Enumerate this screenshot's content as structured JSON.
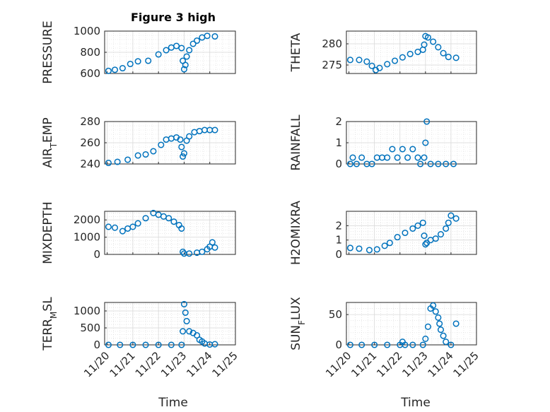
{
  "title": "Figure 3 high",
  "style": {
    "marker_color": "#0072BD",
    "axis_color": "#262626",
    "grid_color": "#d9d9d9"
  },
  "chart_data": [
    {
      "type": "scatter",
      "name": "pressure",
      "title": "Figure 3 high",
      "ylabel": "PRESSURE",
      "ylim": [
        600,
        1000
      ],
      "yticks": [
        600,
        800,
        1000
      ],
      "x": [
        0.05,
        0.3,
        0.6,
        0.9,
        1.2,
        1.6,
        2.0,
        2.3,
        2.5,
        2.7,
        2.9,
        2.95,
        3.0,
        3.05,
        3.1,
        3.2,
        3.35,
        3.5,
        3.7,
        3.9,
        4.2
      ],
      "y": [
        625,
        635,
        650,
        690,
        715,
        720,
        780,
        820,
        845,
        860,
        840,
        720,
        640,
        680,
        760,
        820,
        880,
        910,
        940,
        955,
        950
      ]
    },
    {
      "type": "scatter",
      "name": "theta",
      "ylabel": "THETA",
      "ylim": [
        273,
        283
      ],
      "yticks": [
        275,
        280
      ],
      "x": [
        0.05,
        0.4,
        0.7,
        0.9,
        1.05,
        1.2,
        1.5,
        1.8,
        2.1,
        2.4,
        2.7,
        2.9,
        2.95,
        3.0,
        3.1,
        3.3,
        3.5,
        3.7,
        3.9,
        4.2
      ],
      "y": [
        276.2,
        276.2,
        275.8,
        274.8,
        273.8,
        274.3,
        275.2,
        276.0,
        276.8,
        277.6,
        278.1,
        278.6,
        279.8,
        281.8,
        281.5,
        280.5,
        279.2,
        277.8,
        276.9,
        276.7
      ]
    },
    {
      "type": "scatter",
      "name": "air_temp",
      "ylabel": "AIR_TEMP",
      "ylim": [
        240,
        280
      ],
      "yticks": [
        240,
        260,
        280
      ],
      "x": [
        0.05,
        0.4,
        0.8,
        1.2,
        1.5,
        1.8,
        2.1,
        2.3,
        2.5,
        2.7,
        2.85,
        2.9,
        2.95,
        3.0,
        3.1,
        3.2,
        3.4,
        3.6,
        3.8,
        4.0,
        4.2
      ],
      "y": [
        241,
        242,
        244,
        248,
        249,
        252,
        258,
        263,
        264,
        265,
        263,
        256,
        247,
        250,
        262,
        266,
        270,
        271,
        272,
        272,
        272
      ]
    },
    {
      "type": "scatter",
      "name": "rainfall",
      "ylabel": "RAINFALL",
      "ylim": [
        0,
        2
      ],
      "yticks": [
        0,
        1,
        2
      ],
      "x": [
        0.05,
        0.15,
        0.3,
        0.5,
        0.7,
        0.9,
        1.1,
        1.3,
        1.5,
        1.7,
        1.9,
        2.1,
        2.3,
        2.5,
        2.7,
        2.8,
        2.95,
        3.0,
        3.05,
        3.2,
        3.5,
        3.8,
        4.1
      ],
      "y": [
        0,
        0.3,
        0,
        0.3,
        0,
        0,
        0.3,
        0.3,
        0.3,
        0.7,
        0.3,
        0.7,
        0.3,
        0.7,
        0.3,
        0,
        0.3,
        1.0,
        2.0,
        0,
        0,
        0,
        0
      ]
    },
    {
      "type": "scatter",
      "name": "mixdepth",
      "ylabel": "MIXDEPTH",
      "ylim": [
        0,
        2500
      ],
      "yticks": [
        0,
        1000,
        2000
      ],
      "x": [
        0.05,
        0.3,
        0.6,
        0.8,
        1.0,
        1.2,
        1.5,
        1.8,
        2.0,
        2.2,
        2.4,
        2.6,
        2.8,
        2.9,
        2.95,
        3.0,
        3.2,
        3.5,
        3.7,
        3.9,
        4.0,
        4.1,
        4.2
      ],
      "y": [
        1600,
        1550,
        1350,
        1500,
        1600,
        1800,
        2100,
        2400,
        2300,
        2200,
        2100,
        1900,
        1700,
        1500,
        150,
        50,
        50,
        100,
        150,
        300,
        450,
        700,
        400
      ]
    },
    {
      "type": "scatter",
      "name": "h2omixra",
      "ylabel": "H2OMIXRA",
      "ylim": [
        0,
        3
      ],
      "yticks": [
        0,
        1,
        2
      ],
      "x": [
        0.05,
        0.4,
        0.8,
        1.1,
        1.4,
        1.6,
        1.9,
        2.2,
        2.5,
        2.7,
        2.9,
        2.95,
        3.0,
        3.05,
        3.2,
        3.4,
        3.6,
        3.8,
        3.9,
        4.0,
        4.2
      ],
      "y": [
        0.45,
        0.4,
        0.3,
        0.35,
        0.6,
        0.8,
        1.2,
        1.5,
        1.8,
        2.0,
        2.2,
        1.3,
        0.7,
        0.8,
        1.0,
        1.1,
        1.4,
        1.8,
        2.2,
        2.7,
        2.5
      ]
    },
    {
      "type": "scatter",
      "name": "terr_msl",
      "ylabel": "TERR_MSL",
      "ylim": [
        0,
        1250
      ],
      "yticks": [
        0,
        500,
        1000
      ],
      "x": [
        0.05,
        0.5,
        1.0,
        1.5,
        2.0,
        2.5,
        2.9,
        2.95,
        3.0,
        3.05,
        3.1,
        3.2,
        3.35,
        3.5,
        3.6,
        3.7,
        3.8,
        4.0,
        4.2
      ],
      "y": [
        0,
        0,
        0,
        0,
        0,
        0,
        0,
        400,
        1200,
        950,
        700,
        400,
        350,
        280,
        150,
        100,
        40,
        10,
        20
      ]
    },
    {
      "type": "scatter",
      "name": "sun_flux",
      "ylabel": "SUN_FLUX",
      "ylim": [
        0,
        70
      ],
      "yticks": [
        0,
        50
      ],
      "x": [
        0.05,
        0.5,
        1.0,
        1.5,
        2.0,
        2.1,
        2.2,
        2.5,
        2.9,
        3.0,
        3.1,
        3.2,
        3.3,
        3.4,
        3.5,
        3.55,
        3.6,
        3.7,
        3.8,
        4.0,
        4.2
      ],
      "y": [
        0,
        0,
        0,
        0,
        0,
        5,
        0,
        0,
        0,
        10,
        30,
        60,
        65,
        55,
        45,
        35,
        25,
        15,
        5,
        0,
        35
      ]
    }
  ],
  "xaxis": {
    "ticks": [
      0,
      1,
      2,
      3,
      4,
      5
    ],
    "tick_labels": [
      "11/20",
      "11/21",
      "11/22",
      "11/23",
      "11/24",
      "11/25"
    ],
    "label": "Time",
    "xlim": [
      -0.1,
      5
    ]
  }
}
